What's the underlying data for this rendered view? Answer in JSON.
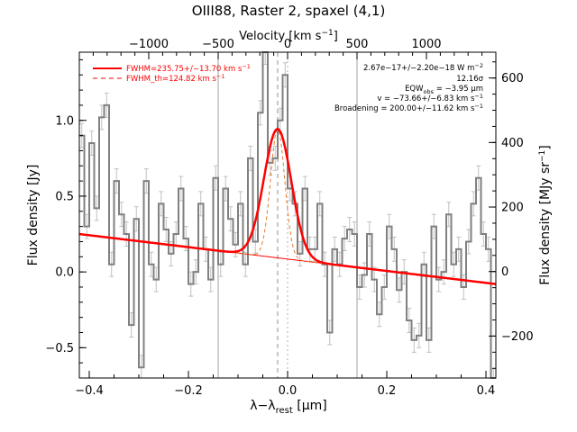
{
  "chart_data": {
    "type": "line",
    "title": "OIII88, Raster 2, spaxel (4,1)",
    "xlabel": "λ−λ_rest [μm]",
    "xlabel_main": "λ−λ",
    "xlabel_sub": "rest",
    "xlabel_unit": " [μm]",
    "ylabel": "Flux density [Jy]",
    "top_axis_label": "Velocity [km s⁻¹]",
    "top_axis_label_main": "Velocity [km s",
    "top_axis_label_sup": "−1",
    "top_axis_label_end": "]",
    "right_axis_label": "Flux density [MJy sr⁻¹]",
    "right_axis_label_main": "Flux density [MJy sr",
    "right_axis_label_sup": "−1",
    "right_axis_label_end": "]",
    "xlim": [
      -0.42,
      0.42
    ],
    "ylim": [
      -0.7,
      1.45
    ],
    "top_xlim": [
      -1500,
      1500
    ],
    "right_ylim": [
      -330,
      680
    ],
    "x_ticks": [
      -0.4,
      -0.2,
      0.0,
      0.2,
      0.4
    ],
    "x_tick_labels": [
      "−0.4",
      "−0.2",
      "0.0",
      "0.2",
      "0.4"
    ],
    "y_ticks": [
      -0.5,
      0.0,
      0.5,
      1.0
    ],
    "y_tick_labels": [
      "−0.5",
      "0.0",
      "0.5",
      "1.0"
    ],
    "top_ticks": [
      -1000,
      -500,
      0,
      500,
      1000
    ],
    "top_tick_labels": [
      "−1000",
      "−500",
      "0",
      "500",
      "1000"
    ],
    "right_ticks": [
      -200,
      0,
      200,
      400,
      600
    ],
    "right_tick_labels": [
      "−200",
      "0",
      "200",
      "400",
      "600"
    ],
    "vertical_lines_x": [
      -0.14,
      0.14
    ],
    "line_center_x": -0.02,
    "zero_velocity_x": 0.0,
    "legend": [
      {
        "label": "FWHM=235.75+/−13.70 km s",
        "sup": "−1",
        "style": "solid",
        "color": "#ff0000"
      },
      {
        "label": "FWHM_th=124.82 km s",
        "sup": "−1",
        "style": "dashed",
        "color": "#ff0000"
      }
    ],
    "legend_position": "top-left",
    "annotations": [
      {
        "text": "2.67e−17+/−2.20e−18 W m",
        "sup": "−2"
      },
      {
        "text": "12.16σ",
        "sup": ""
      },
      {
        "text": "EQW",
        "sub": "obs",
        "text_after": " = −3.95 μm",
        "sup": ""
      },
      {
        "text": "v = −73.66+/−6.83 km s",
        "sup": "−1"
      },
      {
        "text": "Broadening = 200.00+/−11.62 km s",
        "sup": "−1"
      }
    ],
    "annotation_position": "top-right",
    "colors": {
      "data": "#808080",
      "error_bars": "#c0c0c0",
      "fit": "#ff0000",
      "thermal": "#e87a2a",
      "guides": "#a0a0a0"
    },
    "spectrum": {
      "x": [
        -0.415,
        -0.405,
        -0.395,
        -0.385,
        -0.375,
        -0.365,
        -0.355,
        -0.345,
        -0.335,
        -0.325,
        -0.315,
        -0.305,
        -0.295,
        -0.285,
        -0.275,
        -0.265,
        -0.255,
        -0.245,
        -0.235,
        -0.225,
        -0.215,
        -0.205,
        -0.195,
        -0.185,
        -0.175,
        -0.165,
        -0.155,
        -0.145,
        -0.135,
        -0.125,
        -0.115,
        -0.105,
        -0.095,
        -0.085,
        -0.075,
        -0.065,
        -0.055,
        -0.045,
        -0.035,
        -0.025,
        -0.015,
        -0.005,
        0.005,
        0.015,
        0.025,
        0.035,
        0.045,
        0.055,
        0.065,
        0.075,
        0.085,
        0.095,
        0.105,
        0.115,
        0.125,
        0.135,
        0.145,
        0.155,
        0.165,
        0.175,
        0.185,
        0.195,
        0.205,
        0.215,
        0.225,
        0.235,
        0.245,
        0.255,
        0.265,
        0.275,
        0.285,
        0.295,
        0.305,
        0.315,
        0.325,
        0.335,
        0.345,
        0.355,
        0.365,
        0.375,
        0.385,
        0.395,
        0.405,
        0.415
      ],
      "y": [
        0.9,
        0.3,
        0.85,
        0.42,
        1.02,
        1.1,
        0.05,
        0.6,
        0.38,
        0.25,
        -0.35,
        0.35,
        -0.63,
        0.6,
        0.05,
        -0.05,
        0.45,
        0.28,
        0.12,
        0.25,
        0.55,
        0.22,
        -0.08,
        0.0,
        0.45,
        0.15,
        -0.05,
        0.62,
        0.05,
        0.55,
        0.35,
        0.18,
        0.45,
        0.05,
        0.75,
        0.2,
        1.05,
        1.45,
        0.72,
        0.75,
        1.0,
        1.3,
        0.55,
        0.45,
        0.12,
        0.55,
        0.15,
        0.15,
        0.45,
        0.05,
        -0.4,
        0.15,
        0.05,
        0.22,
        0.28,
        0.25,
        -0.1,
        -0.02,
        0.25,
        -0.05,
        -0.28,
        -0.1,
        0.3,
        0.15,
        -0.12,
        0.0,
        -0.32,
        -0.45,
        -0.42,
        0.05,
        -0.45,
        0.3,
        -0.05,
        0.0,
        0.38,
        0.05,
        0.15,
        -0.1,
        0.2,
        0.45,
        0.62,
        0.25,
        0.15,
        -0.72
      ],
      "error": 0.08
    },
    "fit": {
      "baseline_at_xmin": 0.25,
      "baseline_at_xmax": -0.08,
      "amplitude": 0.85,
      "center": -0.02,
      "fwhm_total": 0.065,
      "fwhm_thermal": 0.034
    }
  }
}
